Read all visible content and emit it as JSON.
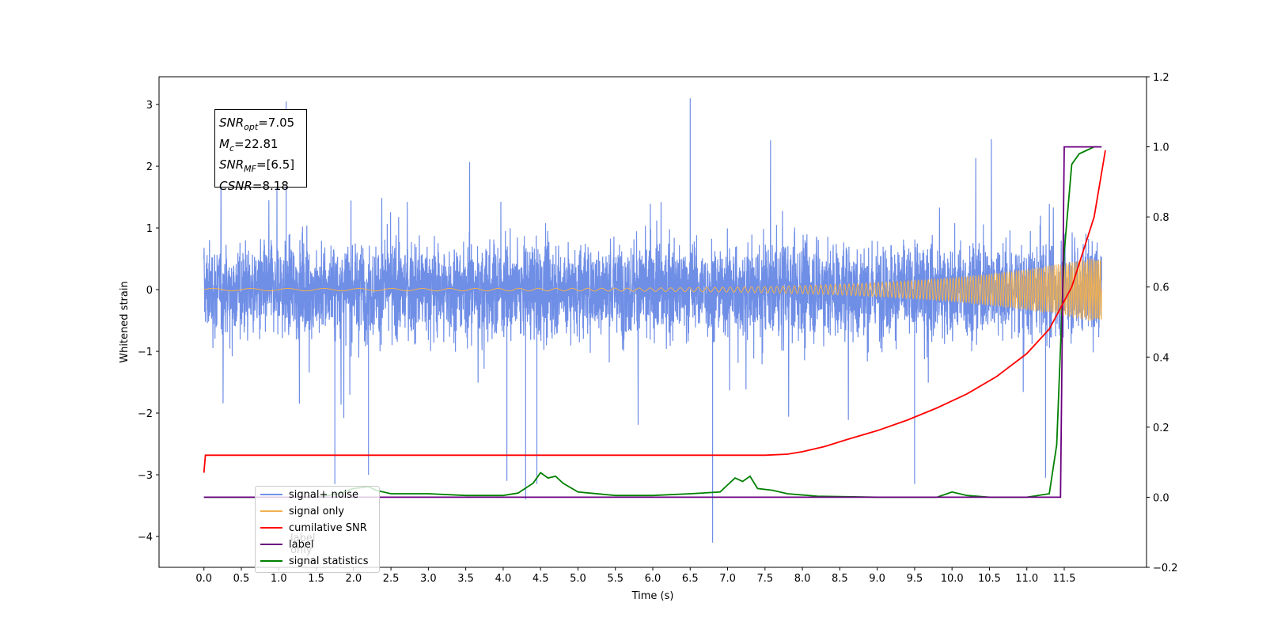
{
  "chart_data": {
    "type": "line",
    "xlabel": "Time (s)",
    "ylabel": "Whitened strain",
    "xlim": [
      -0.6,
      12.6
    ],
    "xticks": [
      0.0,
      0.5,
      1.0,
      1.5,
      2.0,
      2.5,
      3.0,
      3.5,
      4.0,
      4.5,
      5.0,
      5.5,
      6.0,
      6.5,
      7.0,
      7.5,
      8.0,
      8.5,
      9.0,
      9.5,
      10.0,
      10.5,
      11.0,
      11.5
    ],
    "xtick_labels": [
      "0.0",
      "0.5",
      "1.0",
      "1.5",
      "2.0",
      "2.5",
      "3.0",
      "3.5",
      "4.0",
      "4.5",
      "5.0",
      "5.5",
      "6.0",
      "6.5",
      "7.0",
      "7.5",
      "8.0",
      "8.5",
      "9.0",
      "9.5",
      "10.0",
      "10.5",
      "11.0",
      "11.5"
    ],
    "ylim_left": [
      -4.5,
      3.45
    ],
    "yticks_left": [
      3,
      2,
      1,
      0,
      -1,
      -2,
      -3,
      -4
    ],
    "ytick_labels_left": [
      "3",
      "2",
      "1",
      "0",
      "−1",
      "−2",
      "−3",
      "−4"
    ],
    "ylim_right": [
      -0.2,
      1.2
    ],
    "yticks_right": [
      1.2,
      1.0,
      0.8,
      0.6,
      0.4,
      0.2,
      0.0,
      -0.2
    ],
    "ytick_labels_right": [
      "1.2",
      "1.0",
      "0.8",
      "0.6",
      "0.4",
      "0.2",
      "0.0",
      "−0.2"
    ],
    "grid": false,
    "legend_position": "lower-left",
    "series": [
      {
        "name": "signal+ noise",
        "axis": "left",
        "color": "#6f8ee6",
        "description": "dense noisy strain, amplitude about ±1.5 with spikes to about ±3",
        "x_range": [
          0.0,
          12.0
        ],
        "spikes": [
          [
            1.1,
            3.05
          ],
          [
            6.5,
            3.1
          ],
          [
            6.8,
            -4.1
          ],
          [
            1.75,
            -3.15
          ],
          [
            4.3,
            -3.4
          ],
          [
            4.45,
            -3.15
          ],
          [
            9.5,
            -3.15
          ],
          [
            2.2,
            -3.0
          ],
          [
            4.05,
            -3.1
          ],
          [
            11.25,
            -3.05
          ]
        ]
      },
      {
        "name": "signal only",
        "axis": "left",
        "color": "#f0b050",
        "description": "chirp, near zero until about 8 s, amplitude growing to about 0.55 at 12 s",
        "x_range": [
          0.0,
          12.0
        ]
      },
      {
        "name": "cumilative SNR",
        "axis": "right",
        "color": "#ff0000",
        "x": [
          0.0,
          0.02,
          1.0,
          3.0,
          5.0,
          7.0,
          7.5,
          7.8,
          8.0,
          8.3,
          8.6,
          9.0,
          9.4,
          9.8,
          10.2,
          10.6,
          11.0,
          11.3,
          11.6,
          11.9,
          12.05
        ],
        "values": [
          0.07,
          0.12,
          0.12,
          0.12,
          0.12,
          0.12,
          0.12,
          0.123,
          0.13,
          0.145,
          0.165,
          0.19,
          0.22,
          0.255,
          0.295,
          0.345,
          0.41,
          0.48,
          0.6,
          0.8,
          0.99
        ]
      },
      {
        "name": "label",
        "axis": "right",
        "color": "#6a0080",
        "x": [
          0.0,
          11.45,
          11.5,
          12.0
        ],
        "values": [
          0.0,
          0.0,
          1.0,
          1.0
        ]
      },
      {
        "name": "signal statistics",
        "axis": "right",
        "color": "#008000",
        "x": [
          0.0,
          1.5,
          1.8,
          2.0,
          2.2,
          2.3,
          2.5,
          3.0,
          3.5,
          4.0,
          4.2,
          4.4,
          4.5,
          4.6,
          4.7,
          4.8,
          5.0,
          5.5,
          6.0,
          6.5,
          6.9,
          7.0,
          7.1,
          7.2,
          7.3,
          7.4,
          7.6,
          7.8,
          8.2,
          9.0,
          9.8,
          10.0,
          10.2,
          10.5,
          11.0,
          11.3,
          11.4,
          11.5,
          11.6,
          11.7,
          11.8,
          11.9,
          11.95
        ],
        "values": [
          0.0,
          0.0,
          0.01,
          0.025,
          0.03,
          0.02,
          0.01,
          0.01,
          0.005,
          0.005,
          0.012,
          0.04,
          0.07,
          0.055,
          0.06,
          0.04,
          0.015,
          0.005,
          0.005,
          0.01,
          0.015,
          0.035,
          0.055,
          0.045,
          0.06,
          0.025,
          0.02,
          0.01,
          0.003,
          0.0,
          0.0,
          0.015,
          0.005,
          0.0,
          0.0,
          0.01,
          0.15,
          0.7,
          0.95,
          0.98,
          0.99,
          1.0,
          1.0
        ]
      },
      {
        "name": "label only",
        "axis": "right",
        "color": "#b0b0b0",
        "legend_only": true
      }
    ]
  },
  "info_box": {
    "line1_var": "SNR",
    "line1_sub": "opt",
    "line1_val": "=7.05",
    "line2_var": "M",
    "line2_sub": "c",
    "line2_val": "=22.81",
    "line3_var": "SNR",
    "line3_sub": "MF",
    "line3_val": "=[6.5]",
    "line4_var": "CSNR",
    "line4_val": "=8.18"
  },
  "legend": {
    "items": [
      {
        "label": "signal+ noise",
        "color": "#6f8ee6"
      },
      {
        "label": "signal only",
        "color": "#f0b050"
      },
      {
        "label": "cumilative SNR",
        "color": "#ff0000"
      },
      {
        "label": "label",
        "color": "#6a0080"
      },
      {
        "label": "signal statistics",
        "color": "#008000"
      }
    ],
    "ghost_text": "label only"
  }
}
